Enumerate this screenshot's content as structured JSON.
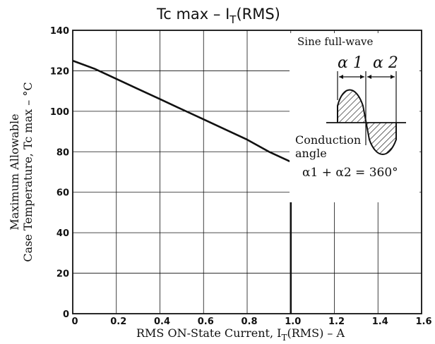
{
  "chart_data": {
    "type": "line",
    "title_main": "Tc  max  –  I",
    "title_sub": "T",
    "title_tail": "(RMS)",
    "xlabel_main": "RMS ON-State Current, I",
    "xlabel_sub": "T",
    "xlabel_tail": "(RMS)  –  A",
    "ylabel_line1": "Maximum Allowable",
    "ylabel_line2": "Case Temperature, Tc max  –  °C",
    "xlim": [
      0,
      1.6
    ],
    "ylim": [
      0,
      140
    ],
    "x_ticks": [
      "0",
      "0.2",
      "0.4",
      "0.6",
      "0.8",
      "1.0",
      "1.2",
      "1.4",
      "1.6"
    ],
    "y_ticks": [
      "0",
      "20",
      "40",
      "60",
      "80",
      "100",
      "120",
      "140"
    ],
    "grid": true,
    "series": [
      {
        "x": [
          0,
          0.1,
          0.2,
          0.3,
          0.4,
          0.5,
          0.6,
          0.7,
          0.8,
          0.9,
          1.0,
          1.0
        ],
        "y": [
          125,
          121,
          116,
          111,
          106,
          101,
          96,
          91,
          86,
          80,
          75,
          0
        ]
      }
    ],
    "annotations": {
      "waveform_title": "Sine full-wave",
      "alpha1": "α 1",
      "alpha2": "α 2",
      "conduction_line1": "Conduction",
      "conduction_line2": "angle",
      "equation": "α1 + α2 = 360°"
    }
  }
}
